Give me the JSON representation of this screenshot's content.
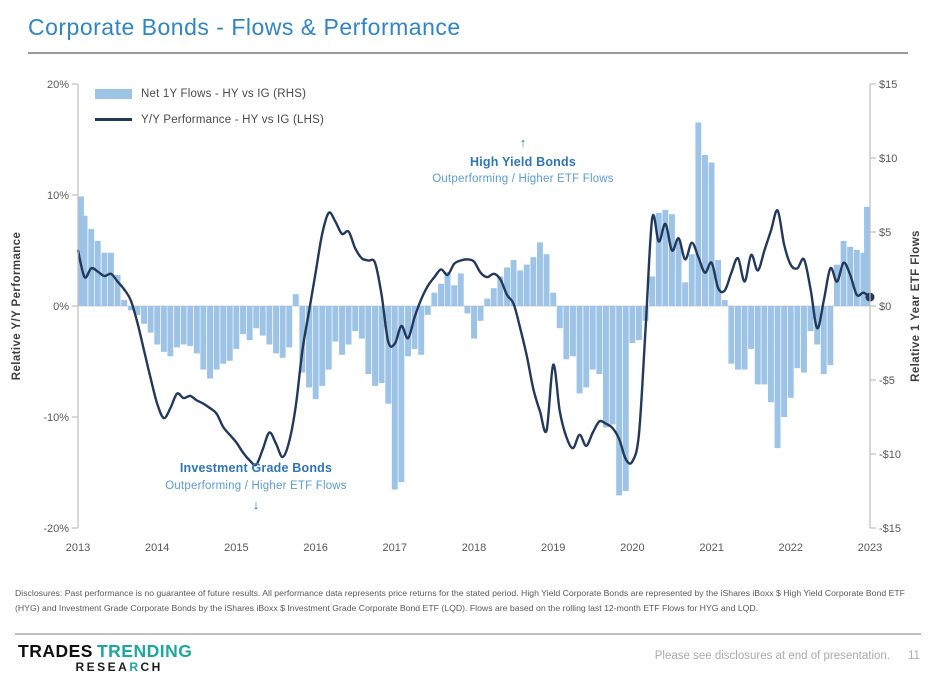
{
  "header": {
    "title": "Corporate Bonds - Flows & Performance"
  },
  "legend": [
    {
      "swatch": "bar-swatch",
      "label": "Net 1Y Flows - HY vs IG (RHS)"
    },
    {
      "swatch": "line-swatch",
      "label": "Y/Y Performance - HY vs IG (LHS)"
    }
  ],
  "annotations": {
    "high_yield": {
      "arrow": "↑",
      "title": "High Yield Bonds",
      "subtitle": "Outperforming / Higher ETF Flows"
    },
    "investment_grade": {
      "title": "Investment Grade Bonds",
      "subtitle": "Outperforming / Higher ETF Flows",
      "arrow": "↓"
    }
  },
  "axes": {
    "left": {
      "title": "Relative Y/Y Performance",
      "ticks": [
        "20%",
        "10%",
        "0%",
        "-10%",
        "-20%"
      ],
      "values": [
        20,
        10,
        0,
        -10,
        -20
      ],
      "range": [
        -20,
        20
      ]
    },
    "right": {
      "title": "Relative 1 Year ETF Flows",
      "ticks": [
        "$15",
        "$10",
        "$5",
        "$0",
        "-$5",
        "-$10",
        "-$15"
      ],
      "values": [
        15,
        10,
        5,
        0,
        -5,
        -10,
        -15
      ],
      "range": [
        -15,
        15
      ]
    },
    "x": {
      "ticks": [
        "2013",
        "2014",
        "2015",
        "2016",
        "2017",
        "2018",
        "2019",
        "2020",
        "2021",
        "2022",
        "2023"
      ]
    }
  },
  "chart_data": {
    "type": "bar+line",
    "frequency": "monthly",
    "x_start": "2013-01",
    "x_end": "2023-01",
    "left_axis_label": "Relative Y/Y Performance",
    "right_axis_label": "Relative 1 Year ETF Flows",
    "left_range": [
      -20,
      20
    ],
    "right_range": [
      -15,
      15
    ],
    "grid": "zero-line-only",
    "legend_position": "top-left",
    "series": [
      {
        "name": "Net 1Y Flows - HY vs IG (RHS)",
        "type": "bar",
        "axis": "right",
        "unit": "$B",
        "color": "#9DC3E6",
        "values": [
          7.4,
          6.1,
          5.2,
          4.4,
          3.6,
          3.6,
          2.1,
          0.4,
          -0.3,
          -0.6,
          -1.2,
          -1.8,
          -2.6,
          -3.1,
          -3.4,
          -2.8,
          -2.6,
          -2.7,
          -3.2,
          -4.3,
          -4.9,
          -4.3,
          -3.9,
          -3.7,
          -2.9,
          -1.9,
          -2.3,
          -1.5,
          -2.0,
          -2.6,
          -3.2,
          -3.5,
          -2.8,
          0.8,
          -4.5,
          -5.5,
          -6.3,
          -5.4,
          -4.3,
          -2.4,
          -3.3,
          -2.6,
          -1.7,
          -2.2,
          -4.6,
          -5.4,
          -5.2,
          -6.6,
          -12.4,
          -11.9,
          -3.4,
          -2.9,
          -3.3,
          -0.6,
          0.9,
          1.5,
          2.3,
          1.4,
          2.2,
          -0.5,
          -2.2,
          -1.0,
          0.5,
          1.2,
          2.0,
          2.6,
          3.1,
          2.4,
          2.8,
          3.3,
          4.3,
          3.5,
          0.9,
          -1.5,
          -3.6,
          -3.4,
          -5.9,
          -5.5,
          -4.3,
          -4.6,
          -8.2,
          -8.0,
          -12.8,
          -12.5,
          -2.5,
          -2.3,
          -1.0,
          2.0,
          6.3,
          6.5,
          6.2,
          4.5,
          1.6,
          3.5,
          12.4,
          10.2,
          9.7,
          3.1,
          0.4,
          -3.9,
          -4.3,
          -4.3,
          -2.9,
          -5.3,
          -5.3,
          -6.5,
          -9.6,
          -7.5,
          -6.2,
          -4.2,
          -4.5,
          -1.7,
          -2.6,
          -4.6,
          -4.0,
          2.8,
          4.4,
          4.0,
          3.8,
          3.6,
          6.7
        ]
      },
      {
        "name": "Y/Y Performance - HY vs IG (LHS)",
        "type": "line",
        "axis": "left",
        "unit": "%",
        "color": "#22395C",
        "end_marker": true,
        "values": [
          5.0,
          2.6,
          3.4,
          3.1,
          2.7,
          2.9,
          2.2,
          1.5,
          0.5,
          -1.5,
          -4.0,
          -6.5,
          -8.8,
          -10.1,
          -9.2,
          -7.9,
          -8.3,
          -8.1,
          -8.5,
          -8.8,
          -9.2,
          -9.7,
          -10.9,
          -11.6,
          -12.3,
          -13.2,
          -13.9,
          -14.3,
          -12.9,
          -11.4,
          -12.4,
          -13.6,
          -12.2,
          -9.0,
          -4.0,
          -0.5,
          3.0,
          6.5,
          8.4,
          7.6,
          6.5,
          6.7,
          5.2,
          4.3,
          4.1,
          3.9,
          1.0,
          -3.2,
          -3.4,
          -1.8,
          -2.9,
          -1.0,
          0.6,
          1.8,
          2.6,
          3.3,
          2.8,
          3.8,
          4.1,
          4.2,
          4.0,
          3.0,
          2.6,
          2.9,
          2.4,
          1.0,
          0.2,
          -2.0,
          -4.5,
          -7.5,
          -9.5,
          -11.2,
          -5.3,
          -9.5,
          -11.8,
          -12.8,
          -11.6,
          -12.6,
          -11.4,
          -10.4,
          -10.6,
          -11.0,
          -12.0,
          -13.8,
          -14.0,
          -11.5,
          -2.0,
          7.9,
          5.8,
          7.4,
          5.0,
          6.1,
          4.2,
          5.7,
          4.4,
          3.0,
          3.9,
          1.6,
          1.4,
          3.0,
          4.3,
          2.2,
          4.6,
          3.2,
          5.0,
          6.8,
          8.6,
          5.5,
          3.7,
          3.4,
          4.2,
          1.5,
          -2.0,
          0.5,
          3.4,
          2.2,
          3.9,
          2.8,
          1.0,
          1.2,
          0.8
        ]
      }
    ]
  },
  "disclosures": "Disclosures: Past performance is no guarantee of future results. All performance data represents price returns for the stated period. High Yield Corporate Bonds are represented by the iShares iBoxx $ High Yield Corporate Bond ETF (HYG) and Investment Grade Corporate Bonds by the iShares iBoxx $ Investment Grade Corporate Bond ETF (LQD). Flows are based on the rolling last 12-month ETF Flows for HYG and LQD.",
  "footer": {
    "logo_part1": "TRADES",
    "logo_part2": "TRENDING",
    "logo_line2": "RESEARCH",
    "note": "Please see disclosures at end of presentation.",
    "page": "11"
  },
  "colors": {
    "bar": "#9DC3E6",
    "line": "#22395C",
    "title_blue": "#2E86C6",
    "annotation_blue": "#2E75B6",
    "annotation_light_blue": "#5B9BD5",
    "logo_teal": "#1CA89E",
    "axis_text": "#595959",
    "zero_line": "#D9D9D9",
    "axis_line": "#BFBFBF"
  }
}
